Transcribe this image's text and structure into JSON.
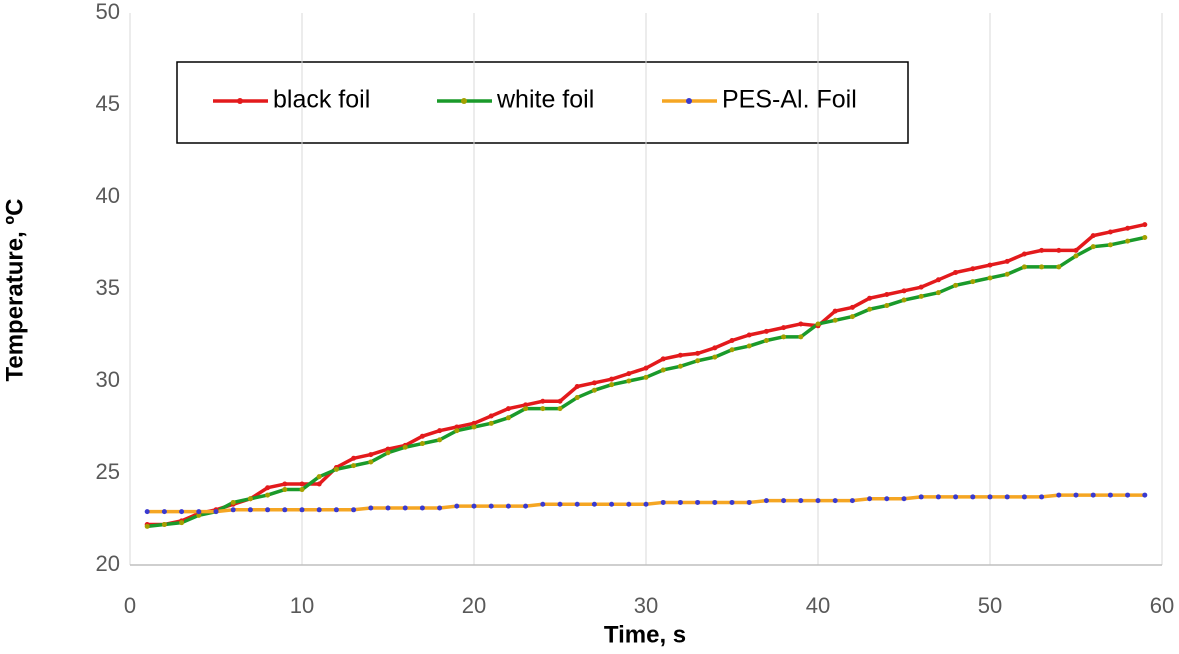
{
  "chart_data": {
    "type": "line",
    "x_label": "Time, s",
    "y_label": "Temperature, ºC",
    "x": [
      1,
      2,
      3,
      4,
      5,
      6,
      7,
      8,
      9,
      10,
      11,
      12,
      13,
      14,
      15,
      16,
      17,
      18,
      19,
      20,
      21,
      22,
      23,
      24,
      25,
      26,
      27,
      28,
      29,
      30,
      31,
      32,
      33,
      34,
      35,
      36,
      37,
      38,
      39,
      40,
      41,
      42,
      43,
      44,
      45,
      46,
      47,
      48,
      49,
      50,
      51,
      52,
      53,
      54,
      55,
      56,
      57,
      58,
      59
    ],
    "series": [
      {
        "name": "black foil",
        "color": "#e31a1c",
        "marker_color": "#e31a1c",
        "values": [
          22.2,
          22.2,
          22.4,
          22.8,
          23.0,
          23.3,
          23.6,
          24.2,
          24.4,
          24.4,
          24.4,
          25.3,
          25.8,
          26.0,
          26.3,
          26.5,
          27.0,
          27.3,
          27.5,
          27.7,
          28.1,
          28.5,
          28.7,
          28.9,
          28.9,
          29.7,
          29.9,
          30.1,
          30.4,
          30.7,
          31.2,
          31.4,
          31.5,
          31.8,
          32.2,
          32.5,
          32.7,
          32.9,
          33.1,
          33.0,
          33.8,
          34.0,
          34.5,
          34.7,
          34.9,
          35.1,
          35.5,
          35.9,
          36.1,
          36.3,
          36.5,
          36.9,
          37.1,
          37.1,
          37.1,
          37.9,
          38.1,
          38.3,
          38.5
        ]
      },
      {
        "name": "white foil",
        "color": "#1a9a2a",
        "marker_color": "#a4a000",
        "values": [
          22.1,
          22.2,
          22.3,
          22.7,
          22.9,
          23.4,
          23.6,
          23.8,
          24.1,
          24.1,
          24.8,
          25.2,
          25.4,
          25.6,
          26.1,
          26.4,
          26.6,
          26.8,
          27.3,
          27.5,
          27.7,
          28.0,
          28.5,
          28.5,
          28.5,
          29.1,
          29.5,
          29.8,
          30.0,
          30.2,
          30.6,
          30.8,
          31.1,
          31.3,
          31.7,
          31.9,
          32.2,
          32.4,
          32.4,
          33.1,
          33.3,
          33.5,
          33.9,
          34.1,
          34.4,
          34.6,
          34.8,
          35.2,
          35.4,
          35.6,
          35.8,
          36.2,
          36.2,
          36.2,
          36.8,
          37.3,
          37.4,
          37.6,
          37.8
        ]
      },
      {
        "name": "PES-Al. Foil",
        "color": "#f5a623",
        "marker_color": "#3a3ad0",
        "values": [
          22.9,
          22.9,
          22.9,
          22.9,
          22.9,
          23.0,
          23.0,
          23.0,
          23.0,
          23.0,
          23.0,
          23.0,
          23.0,
          23.1,
          23.1,
          23.1,
          23.1,
          23.1,
          23.2,
          23.2,
          23.2,
          23.2,
          23.2,
          23.3,
          23.3,
          23.3,
          23.3,
          23.3,
          23.3,
          23.3,
          23.4,
          23.4,
          23.4,
          23.4,
          23.4,
          23.4,
          23.5,
          23.5,
          23.5,
          23.5,
          23.5,
          23.5,
          23.6,
          23.6,
          23.6,
          23.7,
          23.7,
          23.7,
          23.7,
          23.7,
          23.7,
          23.7,
          23.7,
          23.8,
          23.8,
          23.8,
          23.8,
          23.8,
          23.8
        ]
      }
    ],
    "xlim": [
      0,
      60
    ],
    "xticks": [
      0,
      10,
      20,
      30,
      40,
      50,
      60
    ],
    "ylim": [
      20,
      50
    ],
    "yticks": [
      20,
      25,
      30,
      35,
      40,
      45,
      50
    ],
    "grid": "x"
  }
}
